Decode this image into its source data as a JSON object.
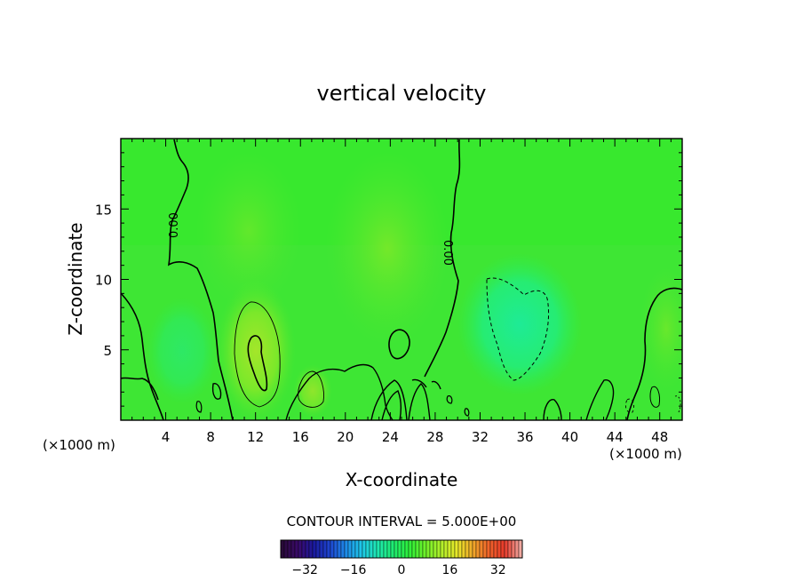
{
  "chart_data": {
    "type": "heatmap",
    "title": "vertical velocity",
    "xlabel": "X-coordinate",
    "ylabel": "Z-coordinate",
    "x_unit": "(×1000 m)",
    "z_unit": "(×1000 m)",
    "xlim": [
      0,
      50
    ],
    "ylim": [
      0,
      20
    ],
    "x_ticks": [
      4,
      8,
      12,
      16,
      20,
      24,
      28,
      32,
      36,
      40,
      44,
      48
    ],
    "y_ticks": [
      5,
      10,
      15
    ],
    "contour_label": "0.00",
    "contour_interval_text": "CONTOUR INTERVAL = 5.000E+00",
    "colorbar": {
      "range": [
        -40,
        40
      ],
      "ticks": [
        -32,
        -16,
        0,
        16,
        32
      ],
      "colors": [
        "#2a0a3a",
        "#3a0a6a",
        "#1a1aa0",
        "#1e46d0",
        "#1e8ae8",
        "#1ec8e8",
        "#1ee8b0",
        "#1eeb70",
        "#2ef03a",
        "#6ef02a",
        "#b0f02a",
        "#e8e82a",
        "#f0a82a",
        "#f0642a",
        "#e83a2a",
        "#f0a8a0"
      ]
    },
    "field_features": [
      {
        "kind": "positive-core",
        "x": 12.5,
        "z": 4.0,
        "value": 10
      },
      {
        "kind": "positive",
        "x": 24,
        "z": 12,
        "value": 4
      },
      {
        "kind": "positive",
        "x": 17,
        "z": 2.2,
        "value": 5
      },
      {
        "kind": "negative-core",
        "x": 35.5,
        "z": 7,
        "value": -5
      },
      {
        "kind": "negative",
        "x": 5,
        "z": 5,
        "value": -2
      }
    ]
  }
}
